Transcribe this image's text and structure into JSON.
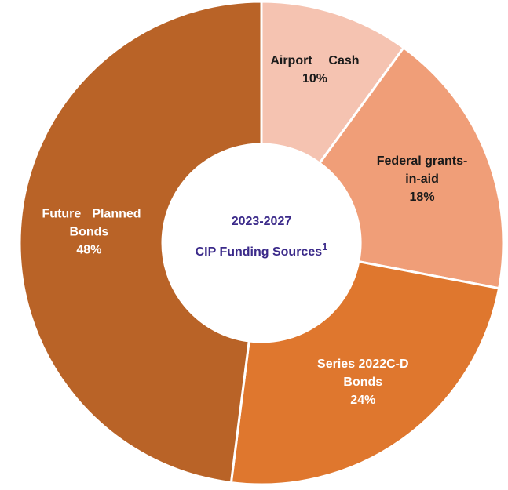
{
  "chart_data": {
    "type": "donut",
    "title": [
      "2023-2027",
      "CIP Funding Sources"
    ],
    "title_footnote": "1",
    "title_color": "#3b2a8a",
    "categories": [
      [
        "Airport",
        "Cash"
      ],
      [
        "Federal grants-",
        "in-aid"
      ],
      [
        "Series 2022C-D",
        "Bonds"
      ],
      [
        "Future",
        "Planned",
        "Bonds"
      ]
    ],
    "values": [
      10,
      18,
      24,
      48
    ],
    "value_labels": [
      "10%",
      "18%",
      "24%",
      "48%"
    ],
    "colors": [
      "#f5c3b1",
      "#f09e78",
      "#df772e",
      "#b96327"
    ],
    "label_colors": [
      "#1a1a1a",
      "#1a1a1a",
      "#ffffff",
      "#ffffff"
    ]
  }
}
